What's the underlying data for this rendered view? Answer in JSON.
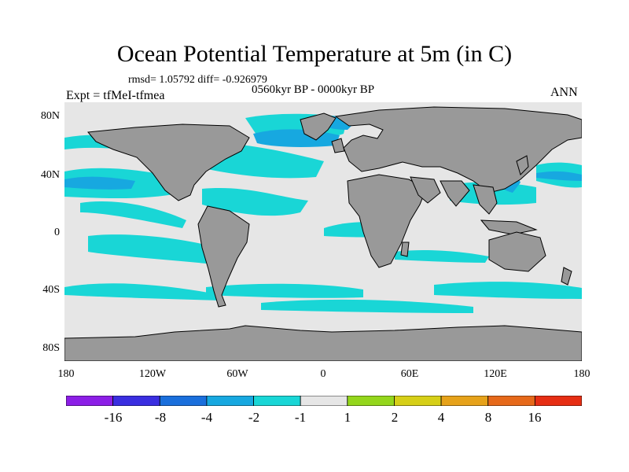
{
  "title": "Ocean Potential Temperature at 5m (in C)",
  "stats": "rmsd= 1.05792 diff= -0.926979",
  "period": "0560kyr BP - 0000kyr BP",
  "expt": "Expt = tfMeI-tfmea",
  "season": "ANN",
  "axes": {
    "lat_ticks": [
      "80N",
      "40N",
      "0",
      "40S",
      "80S"
    ],
    "lon_ticks": [
      "180",
      "120W",
      "60W",
      "0",
      "60E",
      "120E",
      "180"
    ]
  },
  "colors": {
    "land": "#999999",
    "no_change": "#e6e6e6",
    "cool_1_2": "#19d6d6",
    "cool_2_4": "#17a8e0"
  },
  "colorbar": {
    "labels": [
      "-16",
      "-8",
      "-4",
      "-2",
      "-1",
      "1",
      "2",
      "4",
      "8",
      "16"
    ],
    "colors": [
      "#8c1ee6",
      "#3a2ee0",
      "#1a6fdc",
      "#17a8e0",
      "#19d6d6",
      "#e6e6e6",
      "#94d61c",
      "#d6cf17",
      "#e6a21a",
      "#e6691a",
      "#e62e14"
    ]
  }
}
